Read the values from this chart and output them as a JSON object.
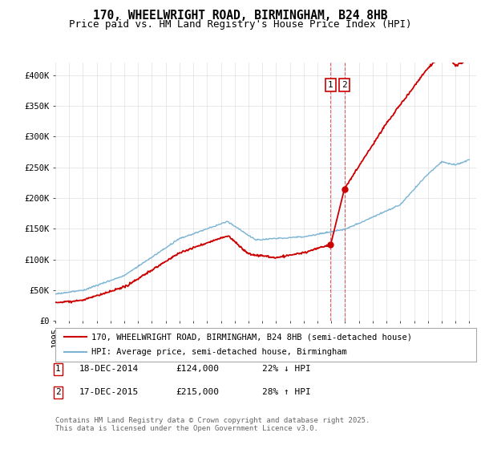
{
  "title_line1": "170, WHEELWRIGHT ROAD, BIRMINGHAM, B24 8HB",
  "title_line2": "Price paid vs. HM Land Registry's House Price Index (HPI)",
  "ylabel_ticks": [
    "£0",
    "£50K",
    "£100K",
    "£150K",
    "£200K",
    "£250K",
    "£300K",
    "£350K",
    "£400K"
  ],
  "ytick_values": [
    0,
    50000,
    100000,
    150000,
    200000,
    250000,
    300000,
    350000,
    400000
  ],
  "ylim": [
    0,
    420000
  ],
  "x_start_year": 1995,
  "x_end_year": 2025,
  "purchase1_date": 2014.95,
  "purchase1_price": 124000,
  "purchase2_date": 2015.95,
  "purchase2_price": 215000,
  "line1_color": "#cc0000",
  "line2_color": "#7ab3d4",
  "vline_color": "#cc0000",
  "shaded_color": "#ddeeff",
  "legend_line1": "170, WHEELWRIGHT ROAD, BIRMINGHAM, B24 8HB (semi-detached house)",
  "legend_line2": "HPI: Average price, semi-detached house, Birmingham",
  "footer": "Contains HM Land Registry data © Crown copyright and database right 2025.\nThis data is licensed under the Open Government Licence v3.0.",
  "background_color": "#ffffff",
  "grid_color": "#e0e0e0",
  "title_fontsize": 10.5,
  "subtitle_fontsize": 9,
  "tick_fontsize": 7.5,
  "legend_fontsize": 7.5,
  "annotation_fontsize": 8,
  "footer_fontsize": 6.5
}
